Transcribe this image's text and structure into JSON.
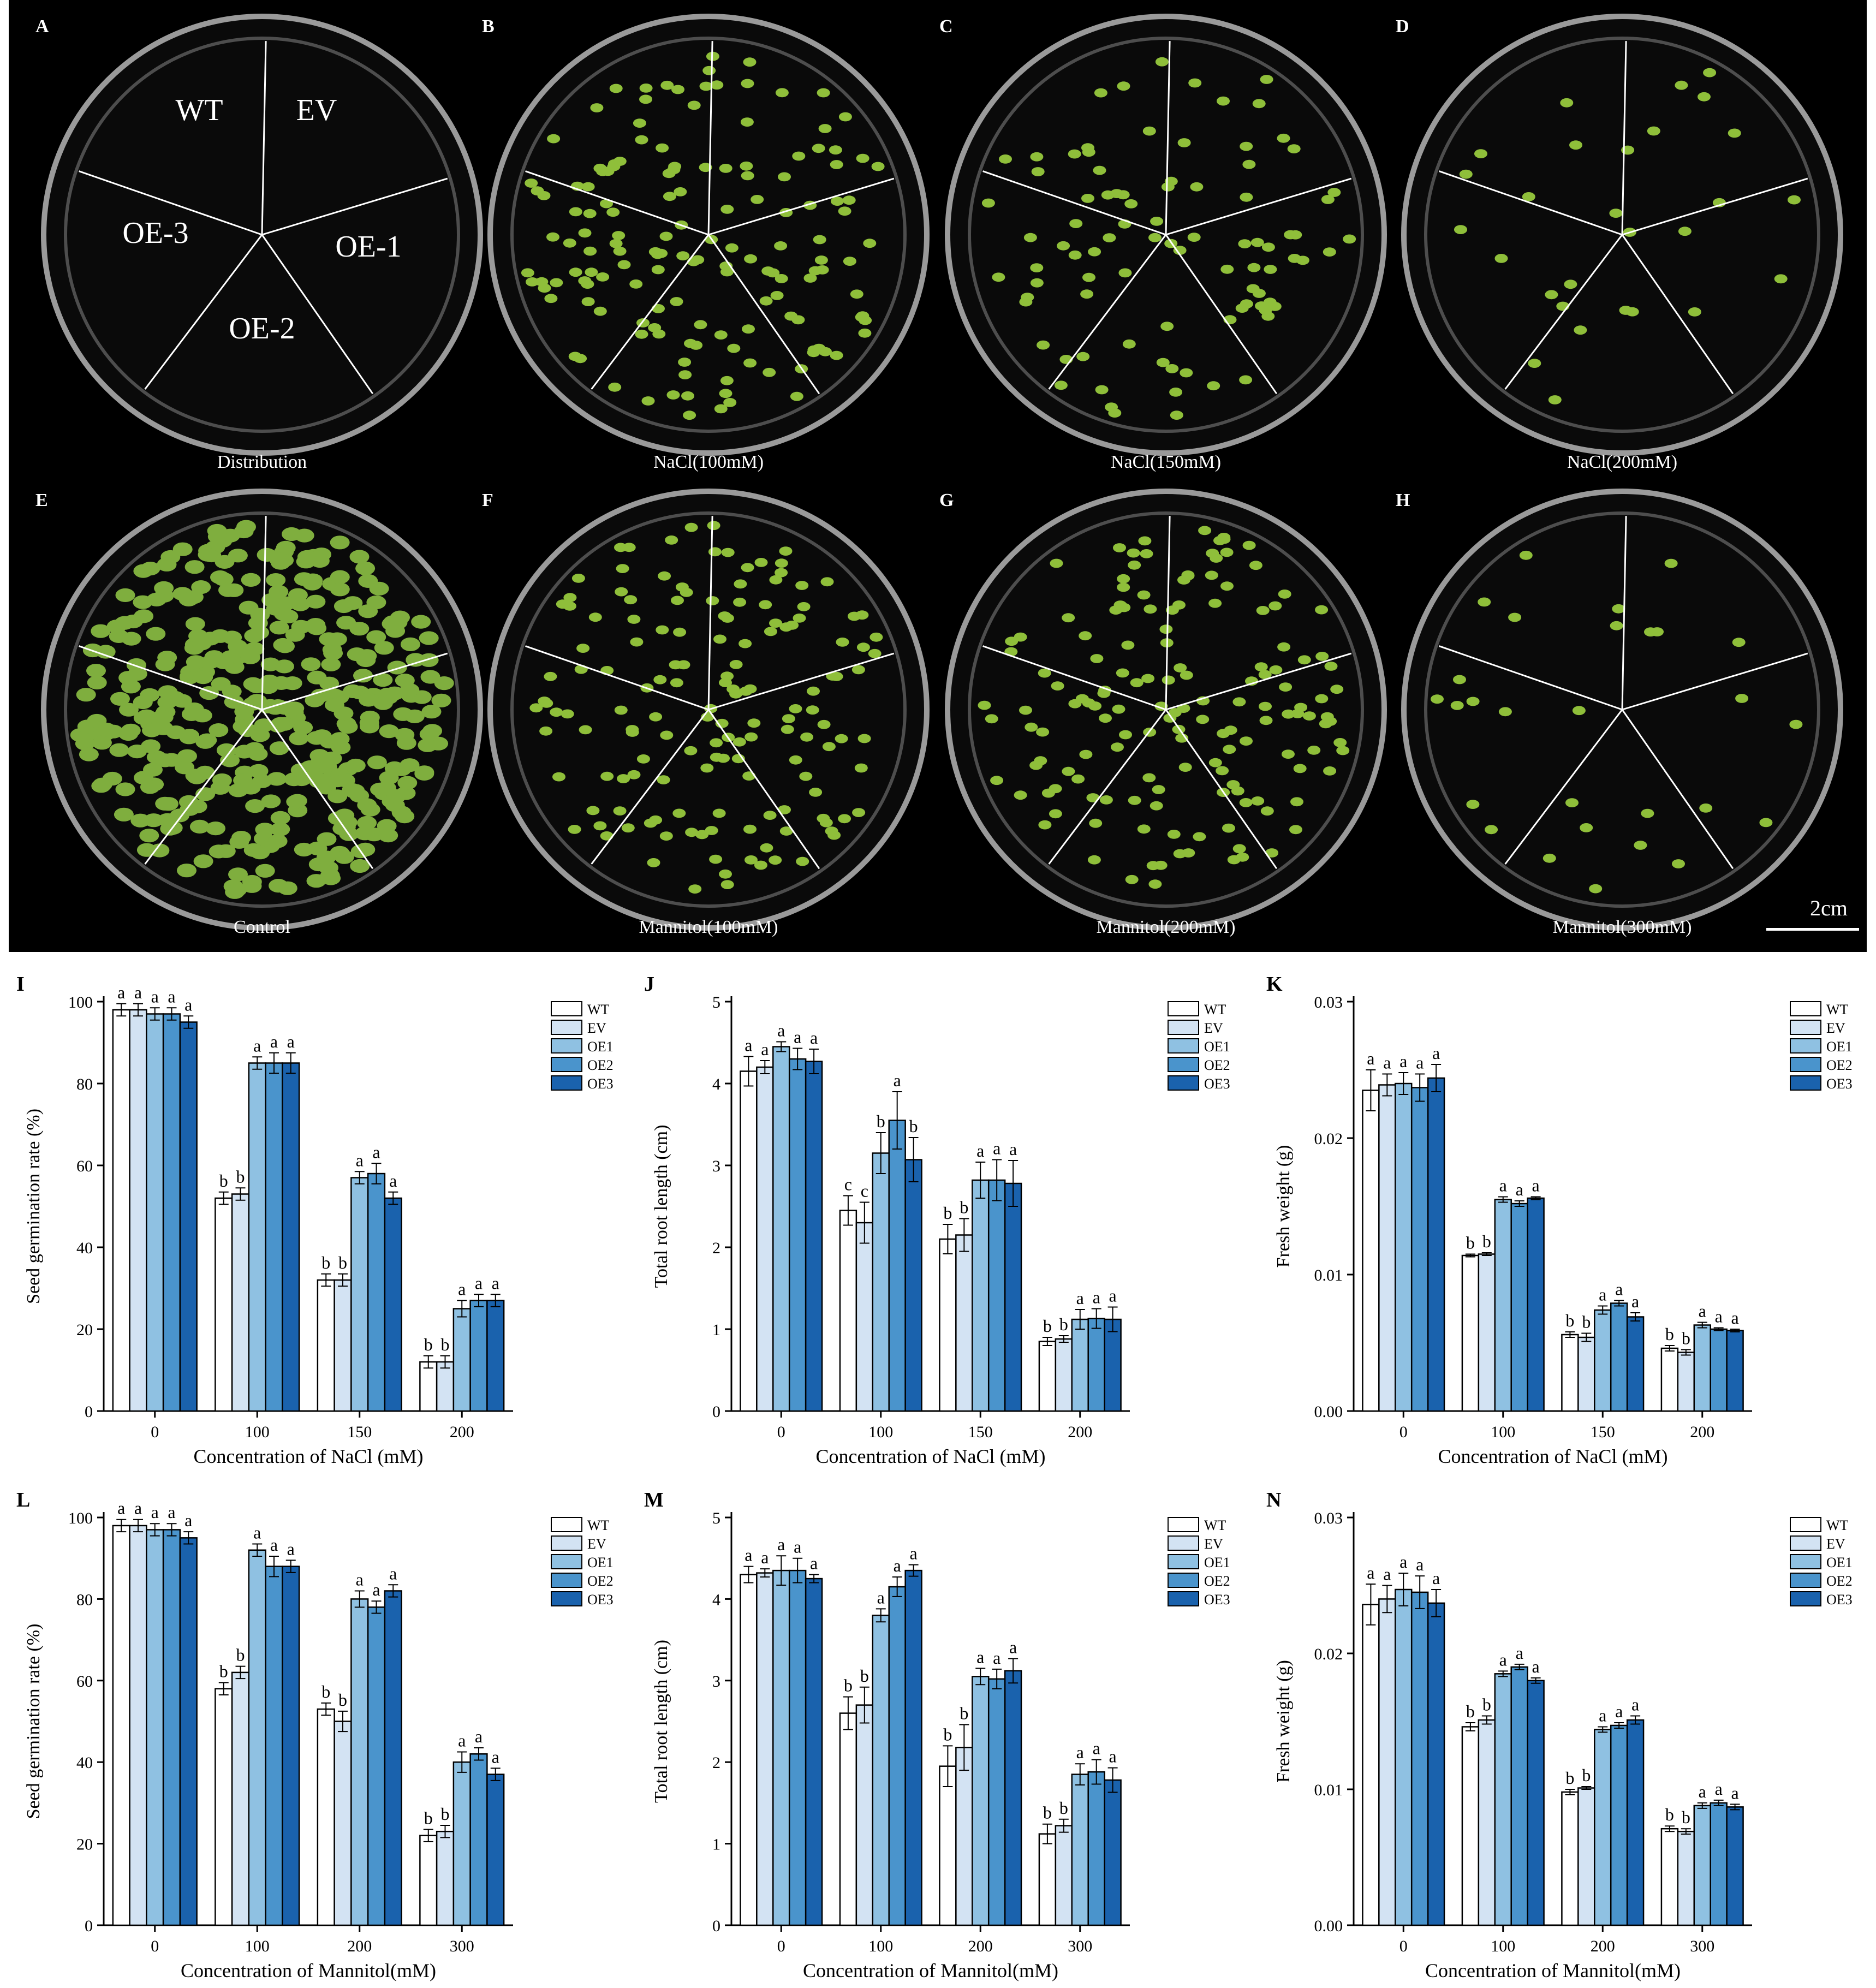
{
  "photo_panel": {
    "plates": [
      {
        "letter": "A",
        "caption": "Distribution",
        "sectors": [
          "WT",
          "EV",
          "OE-1",
          "OE-2",
          "OE-3"
        ],
        "growth": "none"
      },
      {
        "letter": "B",
        "caption": "NaCl(100mM)",
        "growth": "medium"
      },
      {
        "letter": "C",
        "caption": "NaCl(150mM)",
        "growth": "light"
      },
      {
        "letter": "D",
        "caption": "NaCl(200mM)",
        "growth": "sparse"
      },
      {
        "letter": "E",
        "caption": "Control",
        "growth": "dense"
      },
      {
        "letter": "F",
        "caption": "Mannitol(100mM)",
        "growth": "medium"
      },
      {
        "letter": "G",
        "caption": "Mannitol(200mM)",
        "growth": "medium"
      },
      {
        "letter": "H",
        "caption": "Mannitol(300mM)",
        "growth": "sparse"
      }
    ],
    "scale_bar": "2cm"
  },
  "colors": {
    "series": [
      "#ffffff",
      "#d3e3f3",
      "#8fc1e2",
      "#4a94cc",
      "#1a62ad"
    ],
    "plate_bg": "#000000",
    "seedling": "#8fbf3a"
  },
  "chart_data": [
    {
      "panel": "I",
      "type": "bar",
      "categories": [
        "0",
        "100",
        "150",
        "200"
      ],
      "xlabel": "Concentration of NaCl (mM)",
      "ylabel": "Seed germination rate (%)",
      "ylim": [
        0,
        100
      ],
      "yticks": [
        "0",
        "20",
        "40",
        "60",
        "80",
        "100"
      ],
      "legend": [
        "WT",
        "EV",
        "OE1",
        "OE2",
        "OE3"
      ],
      "series": [
        {
          "name": "WT",
          "values": [
            98,
            52,
            32,
            12
          ],
          "err": [
            1.5,
            1.5,
            1.5,
            1.5
          ],
          "sig": [
            "a",
            "b",
            "b",
            "b"
          ]
        },
        {
          "name": "EV",
          "values": [
            98,
            53,
            32,
            12
          ],
          "err": [
            1.5,
            1.5,
            1.5,
            1.5
          ],
          "sig": [
            "a",
            "b",
            "b",
            "b"
          ]
        },
        {
          "name": "OE1",
          "values": [
            97,
            85,
            57,
            25
          ],
          "err": [
            1.5,
            1.5,
            1.5,
            2
          ],
          "sig": [
            "a",
            "a",
            "a",
            "a"
          ]
        },
        {
          "name": "OE2",
          "values": [
            97,
            85,
            58,
            27
          ],
          "err": [
            1.5,
            2.5,
            2.5,
            1.5
          ],
          "sig": [
            "a",
            "a",
            "a",
            "a"
          ]
        },
        {
          "name": "OE3",
          "values": [
            95,
            85,
            52,
            27
          ],
          "err": [
            1.5,
            2.5,
            1.5,
            1.5
          ],
          "sig": [
            "a",
            "a",
            "a",
            "a"
          ]
        }
      ]
    },
    {
      "panel": "J",
      "type": "bar",
      "categories": [
        "0",
        "100",
        "150",
        "200"
      ],
      "xlabel": "Concentration of NaCl (mM)",
      "ylabel": "Total root length (cm)",
      "ylim": [
        0,
        5
      ],
      "yticks": [
        "0",
        "1",
        "2",
        "3",
        "4",
        "5"
      ],
      "legend": [
        "WT",
        "EV",
        "OE1",
        "OE2",
        "OE3"
      ],
      "series": [
        {
          "name": "WT",
          "values": [
            4.15,
            2.45,
            2.1,
            0.85
          ],
          "err": [
            0.18,
            0.18,
            0.18,
            0.05
          ],
          "sig": [
            "a",
            "c",
            "b",
            "b"
          ]
        },
        {
          "name": "EV",
          "values": [
            4.2,
            2.3,
            2.15,
            0.88
          ],
          "err": [
            0.08,
            0.25,
            0.2,
            0.04
          ],
          "sig": [
            "a",
            "c",
            "b",
            "b"
          ]
        },
        {
          "name": "OE1",
          "values": [
            4.45,
            3.15,
            2.82,
            1.12
          ],
          "err": [
            0.06,
            0.25,
            0.22,
            0.12
          ],
          "sig": [
            "a",
            "b",
            "a",
            "a"
          ]
        },
        {
          "name": "OE2",
          "values": [
            4.3,
            3.55,
            2.82,
            1.13
          ],
          "err": [
            0.13,
            0.35,
            0.25,
            0.12
          ],
          "sig": [
            "a",
            "a",
            "a",
            "a"
          ]
        },
        {
          "name": "OE3",
          "values": [
            4.27,
            3.07,
            2.78,
            1.12
          ],
          "err": [
            0.15,
            0.27,
            0.28,
            0.15
          ],
          "sig": [
            "a",
            "b",
            "a",
            "a"
          ]
        }
      ]
    },
    {
      "panel": "K",
      "type": "bar",
      "categories": [
        "0",
        "100",
        "150",
        "200"
      ],
      "xlabel": "Concentration of NaCl (mM)",
      "ylabel": "Fresh weight (g)",
      "ylim": [
        0,
        0.03
      ],
      "yticks": [
        "0.00",
        "0.01",
        "0.02",
        "0.03"
      ],
      "legend": [
        "WT",
        "EV",
        "OE1",
        "OE2",
        "OE3"
      ],
      "series": [
        {
          "name": "WT",
          "values": [
            0.0235,
            0.0114,
            0.0056,
            0.0046
          ],
          "err": [
            0.0015,
            0.0001,
            0.0002,
            0.0002
          ],
          "sig": [
            "a",
            "b",
            "b",
            "b"
          ]
        },
        {
          "name": "EV",
          "values": [
            0.0239,
            0.0115,
            0.0054,
            0.0043
          ],
          "err": [
            0.0008,
            0.0001,
            0.0003,
            0.0002
          ],
          "sig": [
            "a",
            "b",
            "b",
            "b"
          ]
        },
        {
          "name": "OE1",
          "values": [
            0.024,
            0.0155,
            0.0074,
            0.0063
          ],
          "err": [
            0.0008,
            0.0002,
            0.0003,
            0.0002
          ],
          "sig": [
            "a",
            "a",
            "a",
            "a"
          ]
        },
        {
          "name": "OE2",
          "values": [
            0.0237,
            0.0152,
            0.0079,
            0.006
          ],
          "err": [
            0.001,
            0.0002,
            0.0002,
            0.0001
          ],
          "sig": [
            "a",
            "a",
            "a",
            "a"
          ]
        },
        {
          "name": "OE3",
          "values": [
            0.0244,
            0.0156,
            0.0069,
            0.0059
          ],
          "err": [
            0.001,
            0.0001,
            0.0003,
            0.0001
          ],
          "sig": [
            "a",
            "a",
            "a",
            "a"
          ]
        }
      ]
    },
    {
      "panel": "L",
      "type": "bar",
      "categories": [
        "0",
        "100",
        "200",
        "300"
      ],
      "xlabel": "Concentration of Mannitol(mM)",
      "ylabel": "Seed germination rate (%)",
      "ylim": [
        0,
        100
      ],
      "yticks": [
        "0",
        "20",
        "40",
        "60",
        "80",
        "100"
      ],
      "legend": [
        "WT",
        "EV",
        "OE1",
        "OE2",
        "OE3"
      ],
      "series": [
        {
          "name": "WT",
          "values": [
            98,
            58,
            53,
            22
          ],
          "err": [
            1.5,
            1.5,
            1.5,
            1.5
          ],
          "sig": [
            "a",
            "b",
            "b",
            "b"
          ]
        },
        {
          "name": "EV",
          "values": [
            98,
            62,
            50,
            23
          ],
          "err": [
            1.5,
            1.5,
            2.5,
            1.5
          ],
          "sig": [
            "a",
            "b",
            "b",
            "b"
          ]
        },
        {
          "name": "OE1",
          "values": [
            97,
            92,
            80,
            40
          ],
          "err": [
            1.5,
            1.5,
            2,
            2.5
          ],
          "sig": [
            "a",
            "a",
            "a",
            "a"
          ]
        },
        {
          "name": "OE2",
          "values": [
            97,
            88,
            78,
            42
          ],
          "err": [
            1.5,
            2.5,
            1.5,
            1.5
          ],
          "sig": [
            "a",
            "a",
            "a",
            "a"
          ]
        },
        {
          "name": "OE3",
          "values": [
            95,
            88,
            82,
            37
          ],
          "err": [
            1.5,
            1.5,
            1.5,
            1.5
          ],
          "sig": [
            "a",
            "a",
            "a",
            "a"
          ]
        }
      ]
    },
    {
      "panel": "M",
      "type": "bar",
      "categories": [
        "0",
        "100",
        "200",
        "300"
      ],
      "xlabel": "Concentration of Mannitol(mM)",
      "ylabel": "Total root length (cm)",
      "ylim": [
        0,
        5
      ],
      "yticks": [
        "0",
        "1",
        "2",
        "3",
        "4",
        "5"
      ],
      "legend": [
        "WT",
        "EV",
        "OE1",
        "OE2",
        "OE3"
      ],
      "series": [
        {
          "name": "WT",
          "values": [
            4.3,
            2.6,
            1.95,
            1.12
          ],
          "err": [
            0.1,
            0.2,
            0.25,
            0.12
          ],
          "sig": [
            "a",
            "b",
            "b",
            "b"
          ]
        },
        {
          "name": "EV",
          "values": [
            4.32,
            2.7,
            2.18,
            1.22
          ],
          "err": [
            0.05,
            0.22,
            0.28,
            0.08
          ],
          "sig": [
            "a",
            "b",
            "b",
            "b"
          ]
        },
        {
          "name": "OE1",
          "values": [
            4.35,
            3.8,
            3.05,
            1.85
          ],
          "err": [
            0.18,
            0.08,
            0.1,
            0.13
          ],
          "sig": [
            "a",
            "a",
            "a",
            "a"
          ]
        },
        {
          "name": "OE2",
          "values": [
            4.35,
            4.15,
            3.02,
            1.88
          ],
          "err": [
            0.15,
            0.12,
            0.12,
            0.15
          ],
          "sig": [
            "a",
            "a",
            "a",
            "a"
          ]
        },
        {
          "name": "OE3",
          "values": [
            4.25,
            4.35,
            3.12,
            1.78
          ],
          "err": [
            0.05,
            0.07,
            0.15,
            0.15
          ],
          "sig": [
            "a",
            "a",
            "a",
            "a"
          ]
        }
      ]
    },
    {
      "panel": "N",
      "type": "bar",
      "categories": [
        "0",
        "100",
        "200",
        "300"
      ],
      "xlabel": "Concentration of Mannitol(mM)",
      "ylabel": "Fresh weight (g)",
      "ylim": [
        0,
        0.03
      ],
      "yticks": [
        "0.00",
        "0.01",
        "0.02",
        "0.03"
      ],
      "legend": [
        "WT",
        "EV",
        "OE1",
        "OE2",
        "OE3"
      ],
      "series": [
        {
          "name": "WT",
          "values": [
            0.0236,
            0.0146,
            0.0098,
            0.0071
          ],
          "err": [
            0.0015,
            0.0003,
            0.0002,
            0.0002
          ],
          "sig": [
            "a",
            "b",
            "b",
            "b"
          ]
        },
        {
          "name": "EV",
          "values": [
            0.024,
            0.0151,
            0.0101,
            0.0069
          ],
          "err": [
            0.001,
            0.0003,
            0.0001,
            0.0002
          ],
          "sig": [
            "a",
            "b",
            "b",
            "b"
          ]
        },
        {
          "name": "OE1",
          "values": [
            0.0247,
            0.0185,
            0.0144,
            0.0088
          ],
          "err": [
            0.0012,
            0.0002,
            0.0002,
            0.0002
          ],
          "sig": [
            "a",
            "a",
            "a",
            "a"
          ]
        },
        {
          "name": "OE2",
          "values": [
            0.0245,
            0.019,
            0.0147,
            0.009
          ],
          "err": [
            0.0012,
            0.0002,
            0.0002,
            0.0002
          ],
          "sig": [
            "a",
            "a",
            "a",
            "a"
          ]
        },
        {
          "name": "OE3",
          "values": [
            0.0237,
            0.018,
            0.0151,
            0.0087
          ],
          "err": [
            0.001,
            0.0002,
            0.0003,
            0.0002
          ],
          "sig": [
            "a",
            "a",
            "a",
            "a"
          ]
        }
      ]
    }
  ]
}
